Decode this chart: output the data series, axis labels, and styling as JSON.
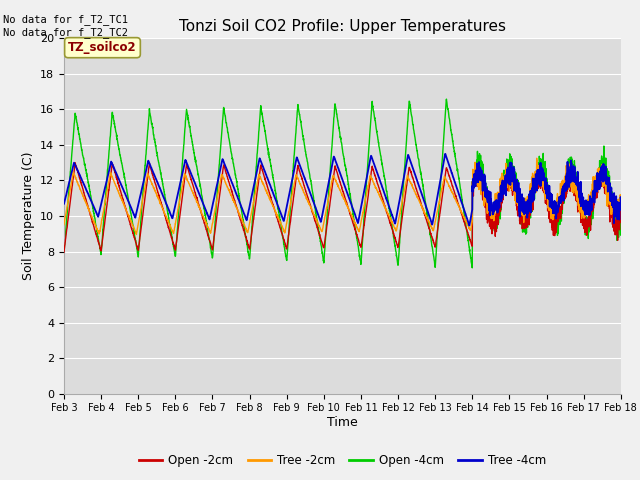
{
  "title": "Tonzi Soil CO2 Profile: Upper Temperatures",
  "ylabel": "Soil Temperature (C)",
  "xlabel": "Time",
  "xlim": [
    0,
    15
  ],
  "ylim": [
    0,
    20
  ],
  "yticks": [
    0,
    2,
    4,
    6,
    8,
    10,
    12,
    14,
    16,
    18,
    20
  ],
  "xtick_labels": [
    "Feb 3",
    "Feb 4",
    "Feb 5",
    "Feb 6",
    "Feb 7",
    "Feb 8",
    "Feb 9",
    "Feb 10",
    "Feb 11",
    "Feb 12",
    "Feb 13",
    "Feb 14",
    "Feb 15",
    "Feb 16",
    "Feb 17",
    "Feb 18"
  ],
  "colors": {
    "open_2cm": "#cc0000",
    "tree_2cm": "#ff9900",
    "open_4cm": "#00cc00",
    "tree_4cm": "#0000cc"
  },
  "fig_bg": "#f0f0f0",
  "plot_bg": "#dcdcdc",
  "annotation_text": "No data for f_T2_TC1\nNo data for f_T2_TC2",
  "box_label": "TZ_soilco2",
  "legend_labels": [
    "Open -2cm",
    "Tree -2cm",
    "Open -4cm",
    "Tree -4cm"
  ]
}
